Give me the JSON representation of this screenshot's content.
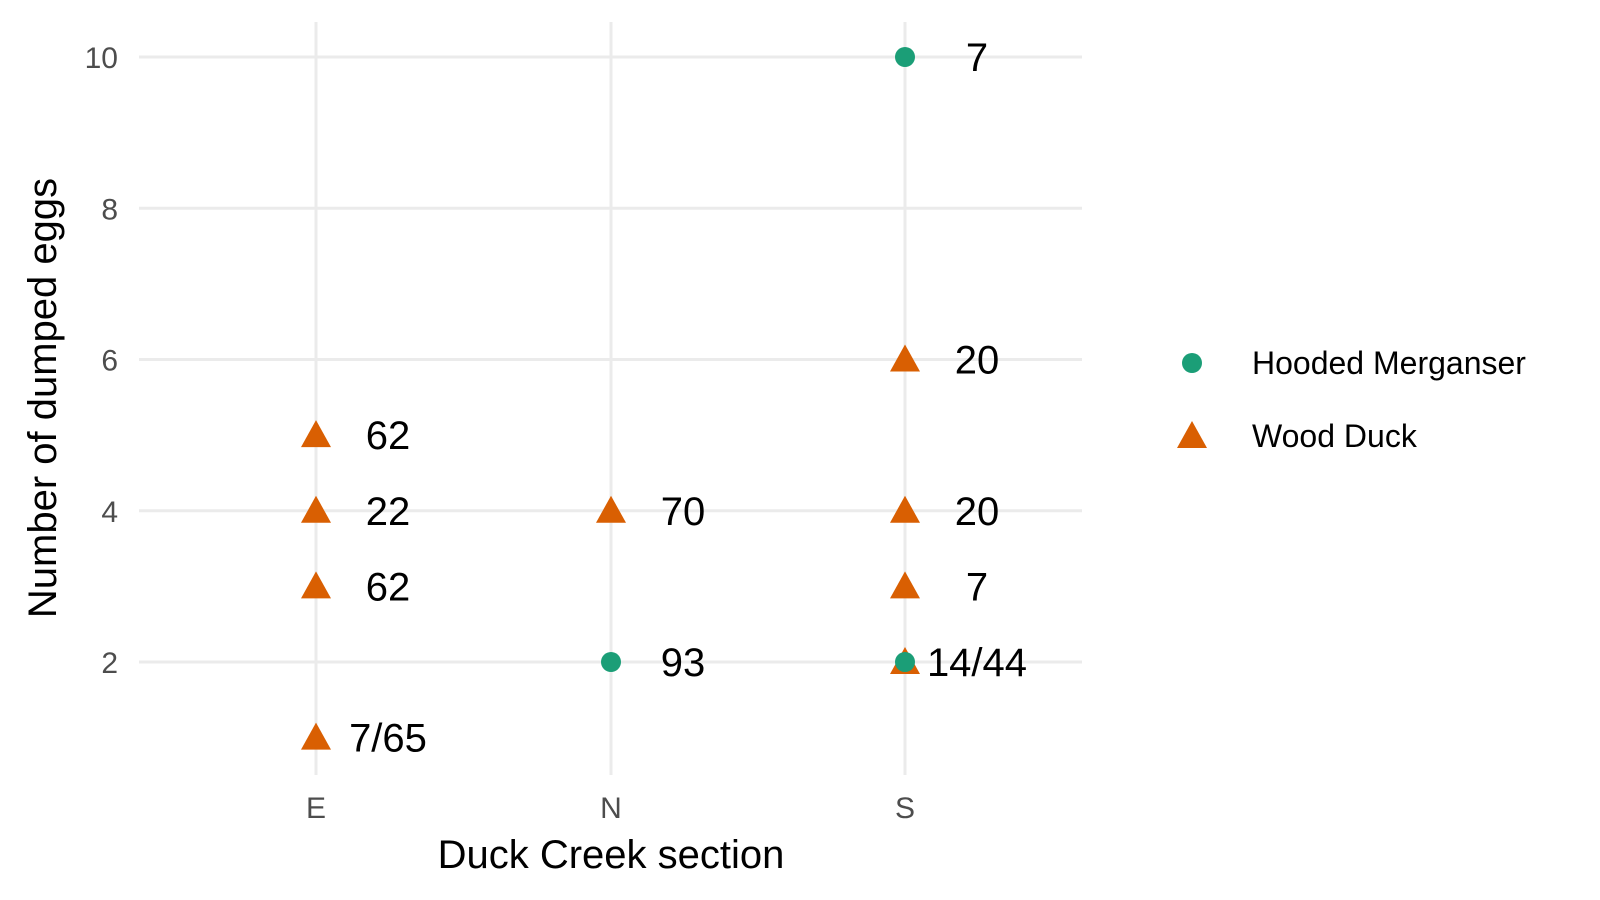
{
  "chart_data": {
    "type": "scatter",
    "title": "",
    "xlabel": "Duck Creek section",
    "ylabel": "Number of dumped eggs",
    "categories": [
      "E",
      "N",
      "S"
    ],
    "y_ticks": [
      2,
      4,
      6,
      8,
      10
    ],
    "ylim": [
      0.7,
      10.3
    ],
    "grid": true,
    "legend_position": "right",
    "series": [
      {
        "name": "Hooded Merganser",
        "shape": "circle",
        "color": "#1b9e77",
        "points": [
          {
            "x": "N",
            "y": 2
          },
          {
            "x": "S",
            "y": 10
          },
          {
            "x": "S",
            "y": 2
          }
        ]
      },
      {
        "name": "Wood Duck",
        "shape": "triangle",
        "color": "#d95f02",
        "points": [
          {
            "x": "E",
            "y": 1
          },
          {
            "x": "E",
            "y": 3
          },
          {
            "x": "E",
            "y": 4
          },
          {
            "x": "E",
            "y": 5
          },
          {
            "x": "N",
            "y": 4
          },
          {
            "x": "S",
            "y": 2
          },
          {
            "x": "S",
            "y": 3
          },
          {
            "x": "S",
            "y": 4
          },
          {
            "x": "S",
            "y": 6
          }
        ]
      }
    ],
    "annotations": [
      {
        "x": "E",
        "y": 1,
        "text": "7/65"
      },
      {
        "x": "E",
        "y": 3,
        "text": "62"
      },
      {
        "x": "E",
        "y": 4,
        "text": "22"
      },
      {
        "x": "E",
        "y": 5,
        "text": "62"
      },
      {
        "x": "N",
        "y": 2,
        "text": "93"
      },
      {
        "x": "N",
        "y": 4,
        "text": "70"
      },
      {
        "x": "S",
        "y": 2,
        "text": "14/44"
      },
      {
        "x": "S",
        "y": 3,
        "text": "7"
      },
      {
        "x": "S",
        "y": 4,
        "text": "20"
      },
      {
        "x": "S",
        "y": 6,
        "text": "20"
      },
      {
        "x": "S",
        "y": 10,
        "text": "7"
      }
    ]
  }
}
